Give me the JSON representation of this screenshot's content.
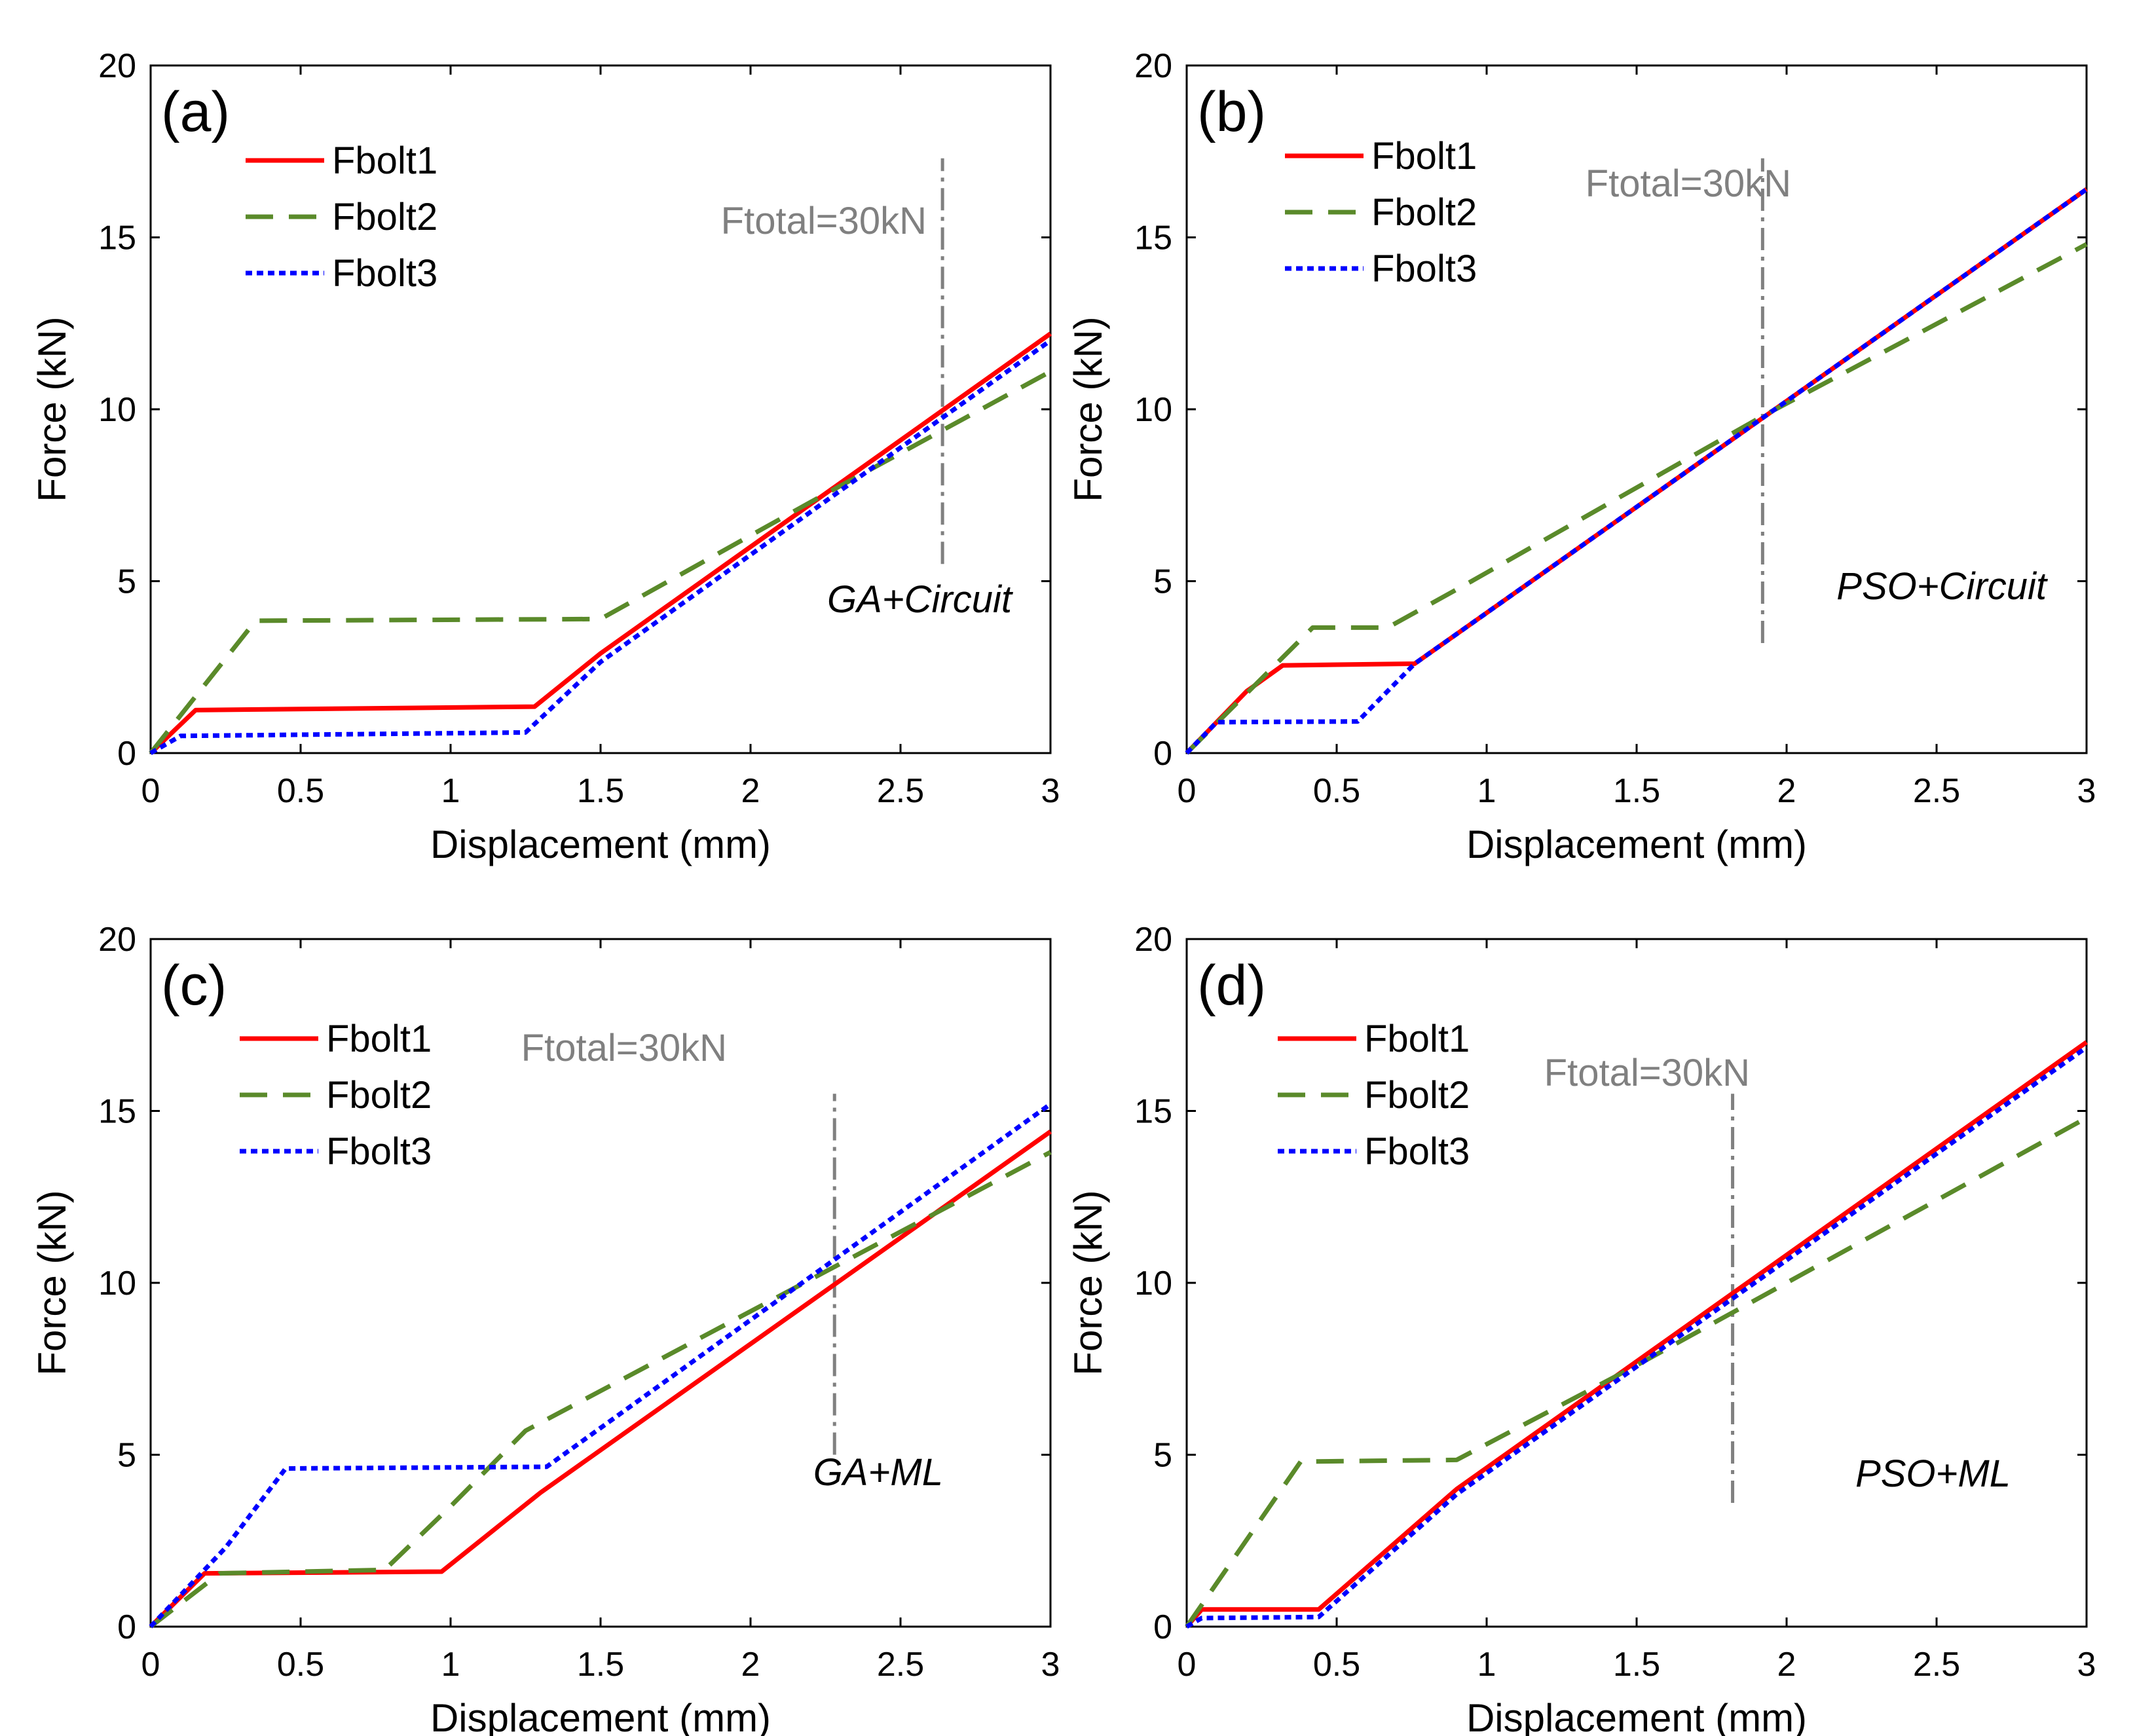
{
  "figure": {
    "colors": {
      "series1": "#ff0000",
      "series2": "#5a8a2a",
      "series3": "#0000ff",
      "marker": "#808080",
      "axis": "#000000"
    }
  },
  "chart_data": [
    {
      "type": "line",
      "panel_label": "(a)",
      "method_label": "GA+Circuit",
      "xlabel": "Displacement (mm)",
      "ylabel": "Force (kN)",
      "xlim": [
        0,
        3
      ],
      "ylim": [
        0,
        20
      ],
      "xticks": [
        0,
        0.5,
        1,
        1.5,
        2,
        2.5,
        3
      ],
      "xtick_labels": [
        "0",
        "0.5",
        "1",
        "1.5",
        "2",
        "2.5",
        "3"
      ],
      "yticks": [
        0,
        5,
        10,
        15,
        20
      ],
      "ytick_labels": [
        "0",
        "5",
        "10",
        "15",
        "20"
      ],
      "legend": [
        "Fbolt1",
        "Fbolt2",
        "Fbolt3"
      ],
      "marker": {
        "label": "Ftotal=30kN",
        "x": 2.64,
        "y_range": [
          5.5,
          17.3
        ]
      },
      "series": [
        {
          "name": "Fbolt1",
          "style": "solid",
          "points": [
            [
              0,
              0
            ],
            [
              0.15,
              1.25
            ],
            [
              1.28,
              1.35
            ],
            [
              1.5,
              2.9
            ],
            [
              3,
              12.2
            ]
          ]
        },
        {
          "name": "Fbolt2",
          "style": "dashed",
          "points": [
            [
              0,
              0
            ],
            [
              0.35,
              3.85
            ],
            [
              1.5,
              3.9
            ],
            [
              2.2,
              7.3
            ],
            [
              3,
              11.1
            ]
          ]
        },
        {
          "name": "Fbolt3",
          "style": "dotted",
          "points": [
            [
              0,
              0
            ],
            [
              0.1,
              0.5
            ],
            [
              1.25,
              0.6
            ],
            [
              1.5,
              2.65
            ],
            [
              3,
              12.0
            ]
          ]
        }
      ]
    },
    {
      "type": "line",
      "panel_label": "(b)",
      "method_label": "PSO+Circuit",
      "xlabel": "Displacement (mm)",
      "ylabel": "Force (kN)",
      "xlim": [
        0,
        3
      ],
      "ylim": [
        0,
        20
      ],
      "xticks": [
        0,
        0.5,
        1,
        1.5,
        2,
        2.5,
        3
      ],
      "xtick_labels": [
        "0",
        "0.5",
        "1",
        "1.5",
        "2",
        "2.5",
        "3"
      ],
      "yticks": [
        0,
        5,
        10,
        15,
        20
      ],
      "ytick_labels": [
        "0",
        "5",
        "10",
        "15",
        "20"
      ],
      "legend": [
        "Fbolt1",
        "Fbolt2",
        "Fbolt3"
      ],
      "marker": {
        "label": "Ftotal=30kN",
        "x": 1.92,
        "y_range": [
          3.2,
          17.3
        ]
      },
      "series": [
        {
          "name": "Fbolt1",
          "style": "solid",
          "points": [
            [
              0,
              0
            ],
            [
              0.2,
              1.8
            ],
            [
              0.32,
              2.55
            ],
            [
              0.76,
              2.6
            ],
            [
              3,
              16.4
            ]
          ]
        },
        {
          "name": "Fbolt2",
          "style": "dashed",
          "points": [
            [
              0,
              0
            ],
            [
              0.42,
              3.65
            ],
            [
              0.67,
              3.65
            ],
            [
              0.95,
              5.0
            ],
            [
              1.92,
              9.8
            ],
            [
              3,
              14.8
            ]
          ]
        },
        {
          "name": "Fbolt3",
          "style": "dotted",
          "points": [
            [
              0,
              0
            ],
            [
              0.1,
              0.9
            ],
            [
              0.57,
              0.92
            ],
            [
              0.76,
              2.6
            ],
            [
              3,
              16.4
            ]
          ]
        }
      ]
    },
    {
      "type": "line",
      "panel_label": "(c)",
      "method_label": "GA+ML",
      "xlabel": "Displacement (mm)",
      "ylabel": "Force (kN)",
      "xlim": [
        0,
        3
      ],
      "ylim": [
        0,
        20
      ],
      "xticks": [
        0,
        0.5,
        1,
        1.5,
        2,
        2.5,
        3
      ],
      "xtick_labels": [
        "0",
        "0.5",
        "1",
        "1.5",
        "2",
        "2.5",
        "3"
      ],
      "yticks": [
        0,
        5,
        10,
        15,
        20
      ],
      "ytick_labels": [
        "0",
        "5",
        "10",
        "15",
        "20"
      ],
      "legend": [
        "Fbolt1",
        "Fbolt2",
        "Fbolt3"
      ],
      "marker": {
        "label": "Ftotal=30kN",
        "x": 2.28,
        "y_range": [
          5.0,
          15.5
        ]
      },
      "series": [
        {
          "name": "Fbolt1",
          "style": "solid",
          "points": [
            [
              0,
              0
            ],
            [
              0.18,
              1.55
            ],
            [
              0.97,
              1.6
            ],
            [
              1.3,
              3.9
            ],
            [
              3,
              14.4
            ]
          ]
        },
        {
          "name": "Fbolt2",
          "style": "dashed",
          "points": [
            [
              0,
              0
            ],
            [
              0.23,
              1.55
            ],
            [
              0.78,
              1.65
            ],
            [
              1.0,
              3.5
            ],
            [
              1.25,
              5.7
            ],
            [
              3,
              13.8
            ]
          ]
        },
        {
          "name": "Fbolt3",
          "style": "dotted",
          "points": [
            [
              0,
              0
            ],
            [
              0.25,
              2.3
            ],
            [
              0.45,
              4.6
            ],
            [
              1.32,
              4.65
            ],
            [
              3,
              15.2
            ]
          ]
        }
      ]
    },
    {
      "type": "line",
      "panel_label": "(d)",
      "method_label": "PSO+ML",
      "xlabel": "Displacement (mm)",
      "ylabel": "Force (kN)",
      "xlim": [
        0,
        3
      ],
      "ylim": [
        0,
        20
      ],
      "xticks": [
        0,
        0.5,
        1,
        1.5,
        2,
        2.5,
        3
      ],
      "xtick_labels": [
        "0",
        "0.5",
        "1",
        "1.5",
        "2",
        "2.5",
        "3"
      ],
      "yticks": [
        0,
        5,
        10,
        15,
        20
      ],
      "ytick_labels": [
        "0",
        "5",
        "10",
        "15",
        "20"
      ],
      "legend": [
        "Fbolt1",
        "Fbolt2",
        "Fbolt3"
      ],
      "marker": {
        "label": "Ftotal=30kN",
        "x": 1.82,
        "y_range": [
          3.6,
          15.5
        ]
      },
      "series": [
        {
          "name": "Fbolt1",
          "style": "solid",
          "points": [
            [
              0,
              0
            ],
            [
              0.05,
              0.5
            ],
            [
              0.44,
              0.5
            ],
            [
              0.9,
              4.0
            ],
            [
              3,
              17.0
            ]
          ]
        },
        {
          "name": "Fbolt2",
          "style": "dashed",
          "points": [
            [
              0,
              0
            ],
            [
              0.38,
              4.8
            ],
            [
              0.9,
              4.85
            ],
            [
              1.5,
              7.6
            ],
            [
              3,
              14.8
            ]
          ]
        },
        {
          "name": "Fbolt3",
          "style": "dotted",
          "points": [
            [
              0,
              0
            ],
            [
              0.05,
              0.25
            ],
            [
              0.44,
              0.28
            ],
            [
              0.9,
              3.85
            ],
            [
              3,
              16.85
            ]
          ]
        }
      ]
    }
  ]
}
